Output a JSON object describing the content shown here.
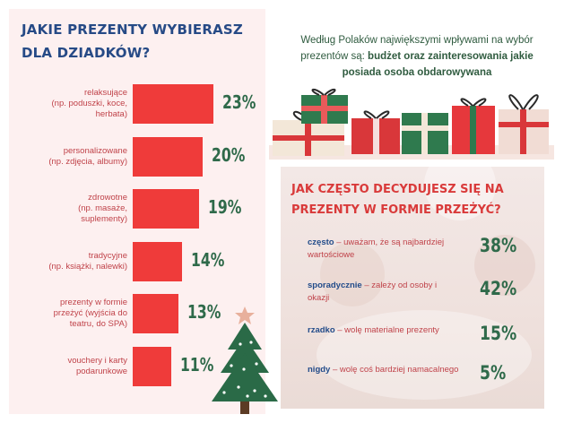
{
  "left_panel": {
    "title": "JAKIE PREZENTY WYBIERASZ DLA DZIADKÓW?"
  },
  "right_top": {
    "intro_plain": "Według Polaków największymi wpływami na wybór prezentów są: ",
    "intro_bold": "budżet oraz zainteresowania jakie posiada osoba obdarowywana"
  },
  "right_bottom": {
    "title": "JAK CZĘSTO DECYDUJESZ SIĘ NA PREZENTY W FORMIE PRZEŻYĆ?",
    "rows": [
      {
        "keyword": "często",
        "text": " – uważam, że są najbardziej wartościowe",
        "pct": "38%"
      },
      {
        "keyword": "sporadycznie",
        "text": " – zależy od osoby i okazji",
        "pct": "42%"
      },
      {
        "keyword": "rzadko",
        "text": " – wolę materialne prezenty",
        "pct": "15%"
      },
      {
        "keyword": "nigdy",
        "text": " – wolę coś bardziej namacalnego",
        "pct": "5%"
      }
    ]
  },
  "colors": {
    "bar": "#ef3b3a",
    "pct": "#2f6a4a",
    "title_blue": "#264a86",
    "title_red": "#d93a3a",
    "label": "#c0434a"
  },
  "chart_data": [
    {
      "type": "bar",
      "title": "JAKIE PREZENTY WYBIERASZ DLA DZIADKÓW?",
      "categories": [
        "relaksujące (np. poduszki, koce, herbata)",
        "personalizowane (np. zdjęcia, albumy)",
        "zdrowotne (np. masaże, suplementy)",
        "tradycyjne (np. książki, nalewki)",
        "prezenty w formie przeżyć (wyjścia do teatru, do SPA)",
        "vouchery i karty podarunkowe"
      ],
      "label_lines": [
        [
          "relaksujące",
          "(np. poduszki, koce,",
          "herbata)"
        ],
        [
          "personalizowane",
          "(np. zdjęcia, albumy)"
        ],
        [
          "zdrowotne",
          "(np. masaże,",
          "suplementy)"
        ],
        [
          "tradycyjne",
          "(np. książki, nalewki)"
        ],
        [
          "prezenty w formie",
          "przeżyć (wyjścia do",
          "teatru, do SPA)"
        ],
        [
          "vouchery i karty",
          "podarunkowe"
        ]
      ],
      "values": [
        23,
        20,
        19,
        14,
        13,
        11
      ],
      "value_labels": [
        "23%",
        "20%",
        "19%",
        "14%",
        "13%",
        "11%"
      ],
      "xlim": [
        0,
        23
      ]
    },
    {
      "type": "table",
      "title": "JAK CZĘSTO DECYDUJESZ SIĘ NA PREZENTY W FORMIE PRZEŻYĆ?",
      "categories": [
        "często",
        "sporadycznie",
        "rzadko",
        "nigdy"
      ],
      "values": [
        38,
        42,
        15,
        5
      ]
    }
  ]
}
